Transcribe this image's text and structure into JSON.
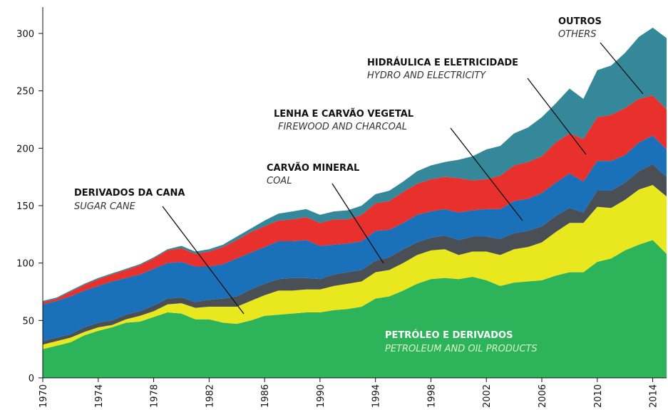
{
  "chart_data": {
    "type": "stacked_area",
    "x": [
      1970,
      1971,
      1972,
      1973,
      1974,
      1975,
      1976,
      1977,
      1978,
      1979,
      1980,
      1981,
      1982,
      1983,
      1984,
      1985,
      1986,
      1987,
      1988,
      1989,
      1990,
      1991,
      1992,
      1993,
      1994,
      1995,
      1996,
      1997,
      1998,
      1999,
      2000,
      2001,
      2002,
      2003,
      2004,
      2005,
      2006,
      2007,
      2008,
      2009,
      2010,
      2011,
      2012,
      2013,
      2014,
      2015
    ],
    "series": [
      {
        "name": "PETRÓLEO E DERIVADOS",
        "name_en": "PETROLEUM AND OIL PRODUCTS",
        "color": "#2db45a",
        "values": [
          25,
          28,
          31,
          37,
          41,
          44,
          48,
          49,
          53,
          57,
          56,
          51,
          51,
          48,
          47,
          50,
          54,
          55,
          56,
          57,
          57,
          59,
          60,
          62,
          69,
          71,
          76,
          82,
          86,
          87,
          86,
          88,
          85,
          80,
          83,
          84,
          85,
          89,
          92,
          92,
          101,
          104,
          111,
          116,
          120,
          108
        ]
      },
      {
        "name": "DERIVADOS DA CANA",
        "name_en": "SUGAR CANE",
        "color": "#e9e81f",
        "values": [
          4,
          4,
          4,
          3,
          3,
          2,
          3,
          5,
          5,
          7,
          9,
          10,
          11,
          14,
          15,
          17,
          18,
          21,
          20,
          20,
          20,
          21,
          22,
          22,
          23,
          23,
          24,
          25,
          25,
          25,
          21,
          22,
          25,
          27,
          29,
          30,
          33,
          38,
          43,
          43,
          48,
          44,
          44,
          48,
          48,
          50
        ]
      },
      {
        "name": "CARVÃO MINERAL",
        "name_en": "COAL",
        "color": "#4a4f55",
        "values": [
          3,
          3,
          3,
          4,
          4,
          4,
          4,
          4,
          5,
          5,
          5,
          5,
          6,
          7,
          9,
          10,
          10,
          10,
          11,
          10,
          9,
          10,
          10,
          10,
          10,
          11,
          12,
          11,
          11,
          12,
          13,
          13,
          13,
          14,
          14,
          14,
          14,
          14,
          13,
          9,
          14,
          15,
          15,
          16,
          18,
          17
        ]
      },
      {
        "name": "LENHA E CARVÃO VEGETAL",
        "name_en": "FIREWOOD AND CHARCOAL",
        "color": "#1a70b9",
        "values": [
          32,
          32,
          33,
          32,
          32,
          34,
          32,
          32,
          32,
          31,
          31,
          31,
          29,
          30,
          33,
          32,
          32,
          33,
          32,
          33,
          29,
          26,
          25,
          25,
          26,
          24,
          23,
          24,
          23,
          23,
          24,
          23,
          24,
          26,
          28,
          28,
          29,
          29,
          30,
          27,
          26,
          26,
          24,
          25,
          25,
          24
        ]
      },
      {
        "name": "HIDRÁULICA E ELETRICIDADE",
        "name_en": "HYDRO AND ELECTRICITY",
        "color": "#e8302d",
        "values": [
          2,
          2,
          4,
          5,
          6,
          6,
          7,
          8,
          9,
          11,
          12,
          11,
          13,
          15,
          16,
          18,
          18,
          18,
          19,
          20,
          20,
          22,
          21,
          23,
          24,
          25,
          27,
          27,
          28,
          28,
          30,
          26,
          26,
          29,
          31,
          32,
          32,
          35,
          35,
          37,
          38,
          40,
          41,
          38,
          35,
          35
        ]
      },
      {
        "name": "OUTROS",
        "name_en": "OTHERS",
        "color": "#348899",
        "values": [
          1,
          1,
          1,
          1,
          1,
          1,
          1,
          1,
          1,
          1,
          2,
          2,
          2,
          2,
          3,
          3,
          5,
          6,
          7,
          7,
          7,
          7,
          8,
          8,
          8,
          9,
          9,
          11,
          12,
          13,
          16,
          21,
          26,
          26,
          28,
          30,
          34,
          34,
          39,
          35,
          41,
          43,
          48,
          54,
          59,
          62
        ]
      }
    ],
    "xlim": [
      1970,
      2015
    ],
    "xticks": [
      1970,
      1974,
      1978,
      1982,
      1986,
      1990,
      1994,
      1998,
      2002,
      2006,
      2010,
      2014
    ],
    "ylim": [
      0,
      300
    ],
    "yticks": [
      0,
      50,
      100,
      150,
      200,
      250,
      300
    ],
    "grid": false
  }
}
